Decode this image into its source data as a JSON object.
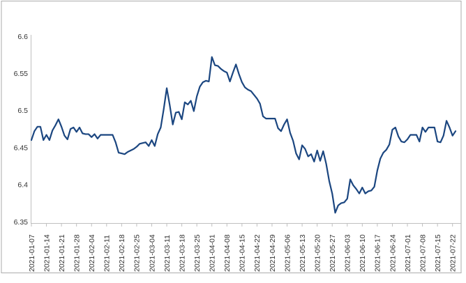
{
  "frame": {
    "background_color": "#FFFFFF",
    "border_color": "#ABABAB"
  },
  "chart_data": {
    "type": "line",
    "title": "",
    "xlabel": "",
    "ylabel": "",
    "grid": false,
    "legend": "none",
    "line_color": "#1B4680",
    "axis_color": "#BFBFBF",
    "text_color": "#333333",
    "ylim": [
      6.35,
      6.6
    ],
    "yticks": [
      6.35,
      6.4,
      6.45,
      6.5,
      6.55,
      6.6
    ],
    "ytick_labels": [
      "6.35",
      "6.4",
      "6.45",
      "6.5",
      "6.55",
      "6.6"
    ],
    "xtick_every": 5,
    "xtick_labels": [
      "2021-01-07",
      "2021-01-14",
      "2021-01-21",
      "2021-01-28",
      "2021-02-04",
      "2021-02-11",
      "2021-02-18",
      "2021-02-25",
      "2021-03-04",
      "2021-03-11",
      "2021-03-18",
      "2021-03-25",
      "2021-04-01",
      "2021-04-08",
      "2021-04-15",
      "2021-04-22",
      "2021-04-29",
      "2021-05-06",
      "2021-05-13",
      "2021-05-20",
      "2021-05-27",
      "2021-06-03",
      "2021-06-10",
      "2021-06-17",
      "2021-06-24",
      "2021-07-01",
      "2021-07-08",
      "2021-07-15",
      "2021-07-22"
    ],
    "x": [
      "2021-01-07",
      "2021-01-08",
      "2021-01-11",
      "2021-01-12",
      "2021-01-13",
      "2021-01-14",
      "2021-01-15",
      "2021-01-18",
      "2021-01-19",
      "2021-01-20",
      "2021-01-21",
      "2021-01-22",
      "2021-01-25",
      "2021-01-26",
      "2021-01-27",
      "2021-01-28",
      "2021-01-29",
      "2021-02-01",
      "2021-02-02",
      "2021-02-03",
      "2021-02-04",
      "2021-02-05",
      "2021-02-08",
      "2021-02-09",
      "2021-02-10",
      "2021-02-11",
      "2021-02-12",
      "2021-02-15",
      "2021-02-16",
      "2021-02-17",
      "2021-02-18",
      "2021-02-19",
      "2021-02-22",
      "2021-02-23",
      "2021-02-24",
      "2021-02-25",
      "2021-02-26",
      "2021-03-01",
      "2021-03-02",
      "2021-03-03",
      "2021-03-04",
      "2021-03-05",
      "2021-03-08",
      "2021-03-09",
      "2021-03-10",
      "2021-03-11",
      "2021-03-12",
      "2021-03-15",
      "2021-03-16",
      "2021-03-17",
      "2021-03-18",
      "2021-03-19",
      "2021-03-22",
      "2021-03-23",
      "2021-03-24",
      "2021-03-25",
      "2021-03-26",
      "2021-03-29",
      "2021-03-30",
      "2021-03-31",
      "2021-04-01",
      "2021-04-02",
      "2021-04-05",
      "2021-04-06",
      "2021-04-07",
      "2021-04-08",
      "2021-04-09",
      "2021-04-12",
      "2021-04-13",
      "2021-04-14",
      "2021-04-15",
      "2021-04-16",
      "2021-04-19",
      "2021-04-20",
      "2021-04-21",
      "2021-04-22",
      "2021-04-23",
      "2021-04-26",
      "2021-04-27",
      "2021-04-28",
      "2021-04-29",
      "2021-04-30",
      "2021-05-03",
      "2021-05-04",
      "2021-05-05",
      "2021-05-06",
      "2021-05-07",
      "2021-05-10",
      "2021-05-11",
      "2021-05-12",
      "2021-05-13",
      "2021-05-14",
      "2021-05-17",
      "2021-05-18",
      "2021-05-19",
      "2021-05-20",
      "2021-05-21",
      "2021-05-24",
      "2021-05-25",
      "2021-05-26",
      "2021-05-27",
      "2021-05-28",
      "2021-05-31",
      "2021-06-01",
      "2021-06-02",
      "2021-06-03",
      "2021-06-04",
      "2021-06-07",
      "2021-06-08",
      "2021-06-09",
      "2021-06-10",
      "2021-06-11",
      "2021-06-14",
      "2021-06-15",
      "2021-06-16",
      "2021-06-17",
      "2021-06-18",
      "2021-06-21",
      "2021-06-22",
      "2021-06-23",
      "2021-06-24",
      "2021-06-25",
      "2021-06-28",
      "2021-06-29",
      "2021-06-30",
      "2021-07-01",
      "2021-07-02",
      "2021-07-05",
      "2021-07-06",
      "2021-07-07",
      "2021-07-08",
      "2021-07-09",
      "2021-07-12",
      "2021-07-13",
      "2021-07-14",
      "2021-07-15",
      "2021-07-16",
      "2021-07-19",
      "2021-07-20",
      "2021-07-21",
      "2021-07-22",
      "2021-07-23"
    ],
    "values": [
      6.46,
      6.472,
      6.478,
      6.478,
      6.46,
      6.467,
      6.46,
      6.473,
      6.48,
      6.488,
      6.478,
      6.466,
      6.461,
      6.475,
      6.477,
      6.471,
      6.477,
      6.469,
      6.468,
      6.468,
      6.464,
      6.468,
      6.462,
      6.467,
      6.467,
      6.467,
      6.467,
      6.467,
      6.457,
      6.443,
      6.442,
      6.441,
      6.444,
      6.446,
      6.448,
      6.451,
      6.455,
      6.456,
      6.457,
      6.452,
      6.46,
      6.452,
      6.468,
      6.477,
      6.502,
      6.53,
      6.507,
      6.481,
      6.497,
      6.498,
      6.488,
      6.511,
      6.508,
      6.513,
      6.499,
      6.519,
      6.532,
      6.538,
      6.54,
      6.539,
      6.572,
      6.561,
      6.56,
      6.556,
      6.553,
      6.551,
      6.539,
      6.551,
      6.562,
      6.549,
      6.538,
      6.531,
      6.528,
      6.526,
      6.521,
      6.516,
      6.509,
      6.492,
      6.489,
      6.489,
      6.489,
      6.489,
      6.476,
      6.472,
      6.481,
      6.488,
      6.47,
      6.459,
      6.442,
      6.434,
      6.453,
      6.448,
      6.438,
      6.441,
      6.431,
      6.446,
      6.432,
      6.445,
      6.428,
      6.405,
      6.388,
      6.362,
      6.372,
      6.375,
      6.376,
      6.381,
      6.407,
      6.399,
      6.394,
      6.388,
      6.396,
      6.388,
      6.391,
      6.392,
      6.397,
      6.419,
      6.435,
      6.443,
      6.447,
      6.454,
      6.474,
      6.477,
      6.465,
      6.458,
      6.457,
      6.461,
      6.467,
      6.467,
      6.467,
      6.458,
      6.477,
      6.471,
      6.477,
      6.477,
      6.477,
      6.458,
      6.457,
      6.466,
      6.486,
      6.477,
      6.466,
      6.472
    ]
  }
}
